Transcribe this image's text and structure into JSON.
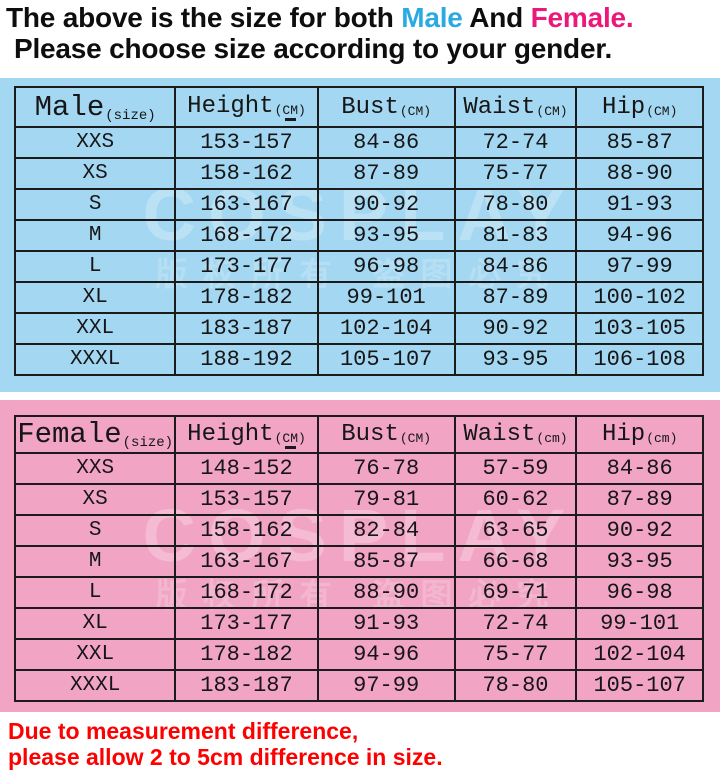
{
  "colors": {
    "male_bg": "#A4D7F2",
    "female_bg": "#F1A4C4",
    "male_accent": "#29ABE2",
    "female_accent": "#EC1879",
    "note_red": "#FE0000",
    "border_col": "#1B1B1B",
    "table_text": "#161616",
    "heading_text": "#0E0E0E"
  },
  "header": {
    "line1_prefix": "The above is the size for both ",
    "male_word": "Male",
    "line1_mid": " And ",
    "female_word": "Female.",
    "line2": "Please choose size according to your gender."
  },
  "size_tables": [
    {
      "id": "male",
      "title": "Male",
      "title_unit": "(size)",
      "columns": [
        {
          "label": "Height",
          "unit": "(CM)",
          "mark": true
        },
        {
          "label": "Bust",
          "unit": "(CM)"
        },
        {
          "label": "Waist",
          "unit": "(CM)"
        },
        {
          "label": "Hip",
          "unit": "(CM)"
        }
      ],
      "rows": [
        [
          "XXS",
          "153-157",
          "84-86",
          "72-74",
          "85-87"
        ],
        [
          "XS",
          "158-162",
          "87-89",
          "75-77",
          "88-90"
        ],
        [
          "S",
          "163-167",
          "90-92",
          "78-80",
          "91-93"
        ],
        [
          "M",
          "168-172",
          "93-95",
          "81-83",
          "94-96"
        ],
        [
          "L",
          "173-177",
          "96-98",
          "84-86",
          "97-99"
        ],
        [
          "XL",
          "178-182",
          "99-101",
          "87-89",
          "100-102"
        ],
        [
          "XXL",
          "183-187",
          "102-104",
          "90-92",
          "103-105"
        ],
        [
          "XXXL",
          "188-192",
          "105-107",
          "93-95",
          "106-108"
        ]
      ]
    },
    {
      "id": "female",
      "title": "Female",
      "title_unit": "(size)",
      "columns": [
        {
          "label": "Height",
          "unit": "(CM)",
          "mark": true
        },
        {
          "label": "Bust",
          "unit": "(CM)"
        },
        {
          "label": "Waist",
          "unit": "(cm)"
        },
        {
          "label": "Hip",
          "unit": "(cm)"
        }
      ],
      "rows": [
        [
          "XXS",
          "148-152",
          "76-78",
          "57-59",
          "84-86"
        ],
        [
          "XS",
          "153-157",
          "79-81",
          "60-62",
          "87-89"
        ],
        [
          "S",
          "158-162",
          "82-84",
          "63-65",
          "90-92"
        ],
        [
          "M",
          "163-167",
          "85-87",
          "66-68",
          "93-95"
        ],
        [
          "L",
          "168-172",
          "88-90",
          "69-71",
          "96-98"
        ],
        [
          "XL",
          "173-177",
          "91-93",
          "72-74",
          "99-101"
        ],
        [
          "XXL",
          "178-182",
          "94-96",
          "75-77",
          "102-104"
        ],
        [
          "XXXL",
          "183-187",
          "97-99",
          "78-80",
          "105-107"
        ]
      ]
    }
  ],
  "watermark": {
    "line1": "COSPLAY",
    "line2": "版权所有 盗图必究"
  },
  "footer": {
    "line1": "Due to measurement difference,",
    "line2": "please allow 2 to 5cm difference in size."
  }
}
